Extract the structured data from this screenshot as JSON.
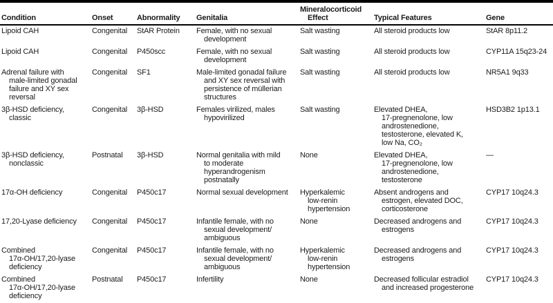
{
  "table": {
    "columns": [
      {
        "key": "condition",
        "label": "Condition"
      },
      {
        "key": "onset",
        "label": "Onset"
      },
      {
        "key": "abnormality",
        "label": "Abnormality"
      },
      {
        "key": "genitalia",
        "label": "Genitalia"
      },
      {
        "key": "mineralocorticoid_effect",
        "label": "Mineralocorticoid\nEffect"
      },
      {
        "key": "typical_features",
        "label": "Typical Features"
      },
      {
        "key": "gene",
        "label": "Gene"
      }
    ],
    "rows": [
      {
        "condition": "Lipoid CAH",
        "onset": "Congenital",
        "abnormality": "StAR Protein",
        "genitalia": "Female, with no sexual\ndevelopment",
        "mineralocorticoid_effect": "Salt wasting",
        "typical_features": "All steroid products low",
        "gene": "StAR 8p11.2"
      },
      {
        "condition": "Lipoid CAH",
        "onset": "Congenital",
        "abnormality": "P450scc",
        "genitalia": "Female, with no sexual\ndevelopment",
        "mineralocorticoid_effect": "Salt wasting",
        "typical_features": "All steroid products low",
        "gene": "CYP11A 15q23-24"
      },
      {
        "condition": "Adrenal failure with\nmale-limited gonadal\nfailure and XY sex\nreversal",
        "onset": "Congenital",
        "abnormality": "SF1",
        "genitalia": "Male-limited gonadal failure\nand XY sex reversal with\npersistence of müllerian\nstructures",
        "mineralocorticoid_effect": "Salt wasting",
        "typical_features": "All steroid products low",
        "gene": "NR5A1 9q33"
      },
      {
        "condition": "3β-HSD deficiency,\nclassic",
        "onset": "Congenital",
        "abnormality": "3β-HSD",
        "genitalia": "Females virilized, males\nhypovirilized",
        "mineralocorticoid_effect": "Salt wasting",
        "typical_features": "Elevated DHEA,\n17-pregnenolone, low\nandrostenedione,\ntestosterone, elevated K,\nlow Na, CO₂",
        "gene": "HSD3B2 1p13.1"
      },
      {
        "condition": "3β-HSD deficiency,\nnonclassic",
        "onset": "Postnatal",
        "abnormality": "3β-HSD",
        "genitalia": "Normal genitalia with mild\nto moderate\nhyperandrogenism\npostnatally",
        "mineralocorticoid_effect": "None",
        "typical_features": "Elevated DHEA,\n17-pregnenolone, low\nandrostenedione,\ntestosterone",
        "gene": "—"
      },
      {
        "condition": "17α-OH deficiency",
        "onset": "Congenital",
        "abnormality": "P450c17",
        "genitalia": "Normal sexual development",
        "mineralocorticoid_effect": "Hyperkalemic\nlow-renin\nhypertension",
        "typical_features": "Absent androgens and\nestrogen, elevated DOC,\ncorticosterone",
        "gene": "CYP17 10q24.3"
      },
      {
        "condition": "17,20-Lyase deficiency",
        "onset": "Congenital",
        "abnormality": "P450c17",
        "genitalia": "Infantile female, with no\nsexual development/\nambiguous",
        "mineralocorticoid_effect": "None",
        "typical_features": "Decreased androgens and\nestrogens",
        "gene": "CYP17 10q24.3"
      },
      {
        "condition": "Combined\n17α-OH/17,20-lyase\ndeficiency",
        "onset": "Congenital",
        "abnormality": "P450c17",
        "genitalia": "Infantile female, with no\nsexual development/\nambiguous",
        "mineralocorticoid_effect": "Hyperkalemic\nlow-renin\nhypertension",
        "typical_features": "Decreased androgens and\nestrogens",
        "gene": "CYP17 10q24.3"
      },
      {
        "condition": "Combined\n17α-OH/17,20-lyase\ndeficiency",
        "onset": "Postnatal",
        "abnormality": "P450c17",
        "genitalia": "Infertility",
        "mineralocorticoid_effect": "None",
        "typical_features": "Decreased follicular estradiol\nand increased progesterone",
        "gene": "CYP17 10q24.3"
      }
    ]
  },
  "colors": {
    "rule": "#000000",
    "text": "#1a1a1a",
    "background": "#ffffff"
  }
}
